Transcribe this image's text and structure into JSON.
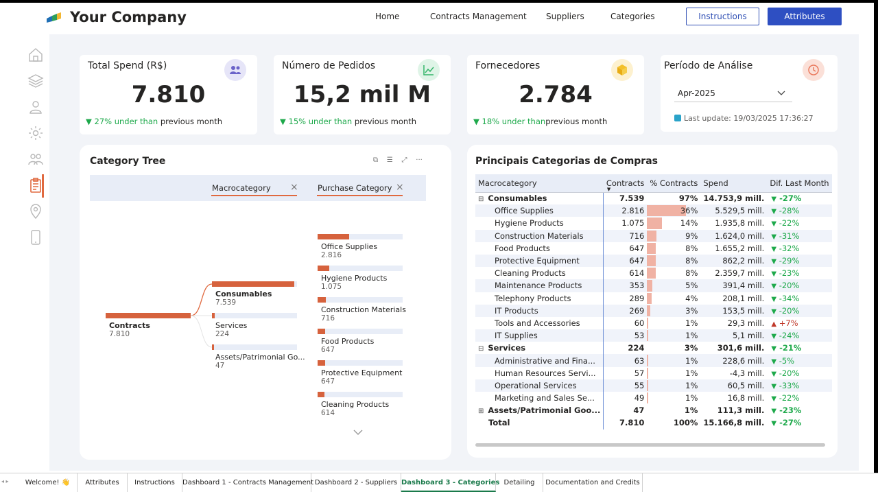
{
  "header": {
    "brand": "Your Company",
    "nav": [
      "Home",
      "Contracts Management",
      "Suppliers",
      "Categories"
    ],
    "instructions_label": "Instructions",
    "attributes_label": "Attributes"
  },
  "kpis": [
    {
      "title": "Total Spend (R$)",
      "value": "7.810",
      "delta": "27% under than",
      "suffix": "previous month",
      "icon": "people-icon"
    },
    {
      "title": "Número de Pedidos",
      "value": "15,2 mil M",
      "delta": "15% under than",
      "suffix": "previous month",
      "icon": "line-chart-icon"
    },
    {
      "title": "Fornecedores",
      "value": "2.784",
      "delta": "18% under than",
      "suffix": "previous month",
      "icon": "box-icon"
    }
  ],
  "period": {
    "title": "Período de Análise",
    "selected": "Apr-2025",
    "last_update": "Last update: 19/03/2025 17:36:27"
  },
  "tree": {
    "title": "Category Tree",
    "col1": "Macrocategory",
    "col2": "Purchase Category",
    "root": {
      "label": "Contracts",
      "value": "7.810",
      "fraction": 1.0
    },
    "level1": [
      {
        "label": "Consumables",
        "value": "7.539",
        "fraction": 0.965
      },
      {
        "label": "Services",
        "value": "224",
        "fraction": 0.029
      },
      {
        "label": "Assets/Patrimonial Go...",
        "value": "47",
        "fraction": 0.006
      }
    ],
    "level2": [
      {
        "label": "Office Supplies",
        "value": "2.816",
        "fraction": 0.37
      },
      {
        "label": "Hygiene Products",
        "value": "1.075",
        "fraction": 0.14
      },
      {
        "label": "Construction Materials",
        "value": "716",
        "fraction": 0.095
      },
      {
        "label": "Food Products",
        "value": "647",
        "fraction": 0.086
      },
      {
        "label": "Protective Equipment",
        "value": "647",
        "fraction": 0.086
      },
      {
        "label": "Cleaning Products",
        "value": "614",
        "fraction": 0.081
      }
    ]
  },
  "matrix": {
    "title": "Principais Categorias de Compras",
    "headers": [
      "Macrocategory",
      "Contracts",
      "% Contracts",
      "Spend",
      "Dif. Last Month"
    ],
    "rows": [
      {
        "type": "grp",
        "toggle": "⊟",
        "name": "Consumables",
        "contracts": "7.539",
        "pct": "97%",
        "pctv": 0,
        "spend": "14.753,9 mill.",
        "dir": "down",
        "dif": "-27%"
      },
      {
        "type": "item",
        "name": "Office Supplies",
        "contracts": "2.816",
        "pct": "36%",
        "pctv": 36,
        "spend": "5.529,5 mill.",
        "dir": "down",
        "dif": "-28%"
      },
      {
        "type": "item",
        "name": "Hygiene Products",
        "contracts": "1.075",
        "pct": "14%",
        "pctv": 14,
        "spend": "1.935,8 mill.",
        "dir": "down",
        "dif": "-22%"
      },
      {
        "type": "item",
        "name": "Construction Materials",
        "contracts": "716",
        "pct": "9%",
        "pctv": 9,
        "spend": "1.624,0 mill.",
        "dir": "down",
        "dif": "-31%"
      },
      {
        "type": "item",
        "name": "Food Products",
        "contracts": "647",
        "pct": "8%",
        "pctv": 8,
        "spend": "1.655,2 mill.",
        "dir": "down",
        "dif": "-32%"
      },
      {
        "type": "item",
        "name": "Protective Equipment",
        "contracts": "647",
        "pct": "8%",
        "pctv": 8,
        "spend": "862,2 mill.",
        "dir": "down",
        "dif": "-29%"
      },
      {
        "type": "item",
        "name": "Cleaning Products",
        "contracts": "614",
        "pct": "8%",
        "pctv": 8,
        "spend": "2.359,7 mill.",
        "dir": "down",
        "dif": "-23%"
      },
      {
        "type": "item",
        "name": "Maintenance Products",
        "contracts": "353",
        "pct": "5%",
        "pctv": 5,
        "spend": "391,4 mill.",
        "dir": "down",
        "dif": "-20%"
      },
      {
        "type": "item",
        "name": "Telephony Products",
        "contracts": "289",
        "pct": "4%",
        "pctv": 4,
        "spend": "208,1 mill.",
        "dir": "down",
        "dif": "-34%"
      },
      {
        "type": "item",
        "name": "IT Products",
        "contracts": "269",
        "pct": "3%",
        "pctv": 3,
        "spend": "153,5 mill.",
        "dir": "down",
        "dif": "-20%"
      },
      {
        "type": "item",
        "name": "Tools and Accessories",
        "contracts": "60",
        "pct": "1%",
        "pctv": 1,
        "spend": "29,3 mill.",
        "dir": "up",
        "dif": "+7%"
      },
      {
        "type": "item",
        "name": "IT Supplies",
        "contracts": "53",
        "pct": "1%",
        "pctv": 1,
        "spend": "5,1 mill.",
        "dir": "down",
        "dif": "-24%"
      },
      {
        "type": "grp",
        "toggle": "⊟",
        "name": "Services",
        "contracts": "224",
        "pct": "3%",
        "pctv": 0,
        "spend": "301,6 mill.",
        "dir": "down",
        "dif": "-21%"
      },
      {
        "type": "item",
        "name": "Administrative and Fina...",
        "contracts": "63",
        "pct": "1%",
        "pctv": 1,
        "spend": "228,6 mill.",
        "dir": "down",
        "dif": "-5%"
      },
      {
        "type": "item",
        "name": "Human Resources Servi...",
        "contracts": "57",
        "pct": "1%",
        "pctv": 1,
        "spend": "-4,3 mill.",
        "dir": "down",
        "dif": "-20%"
      },
      {
        "type": "item",
        "name": "Operational Services",
        "contracts": "55",
        "pct": "1%",
        "pctv": 1,
        "spend": "60,5 mill.",
        "dir": "down",
        "dif": "-33%"
      },
      {
        "type": "item",
        "name": "Marketing and Sales Se...",
        "contracts": "49",
        "pct": "1%",
        "pctv": 1,
        "spend": "16,8 mill.",
        "dir": "down",
        "dif": "-22%"
      },
      {
        "type": "grp",
        "toggle": "⊞",
        "name": "Assets/Patrimonial Goo...",
        "contracts": "47",
        "pct": "1%",
        "pctv": 0,
        "spend": "111,3 mill.",
        "dir": "down",
        "dif": "-23%"
      },
      {
        "type": "tot",
        "toggle": "",
        "name": "Total",
        "contracts": "7.810",
        "pct": "100%",
        "pctv": 0,
        "spend": "15.166,8 mill.",
        "dir": "down",
        "dif": "-27%"
      }
    ]
  },
  "tabs": [
    "Welcome! 👋",
    "Attributes",
    "Instructions",
    "Dashboard 1 - Contracts Management",
    "Dashboard 2 - Suppliers",
    "Dashboard 3 - Categories",
    "Detailing",
    "Documentation and Credits"
  ],
  "active_tab": "Dashboard 3 - Categories",
  "colors": {
    "accent": "#d6623d",
    "primary": "#2e4fc2",
    "positive": "#1ea94b",
    "negative": "#c0392b"
  }
}
